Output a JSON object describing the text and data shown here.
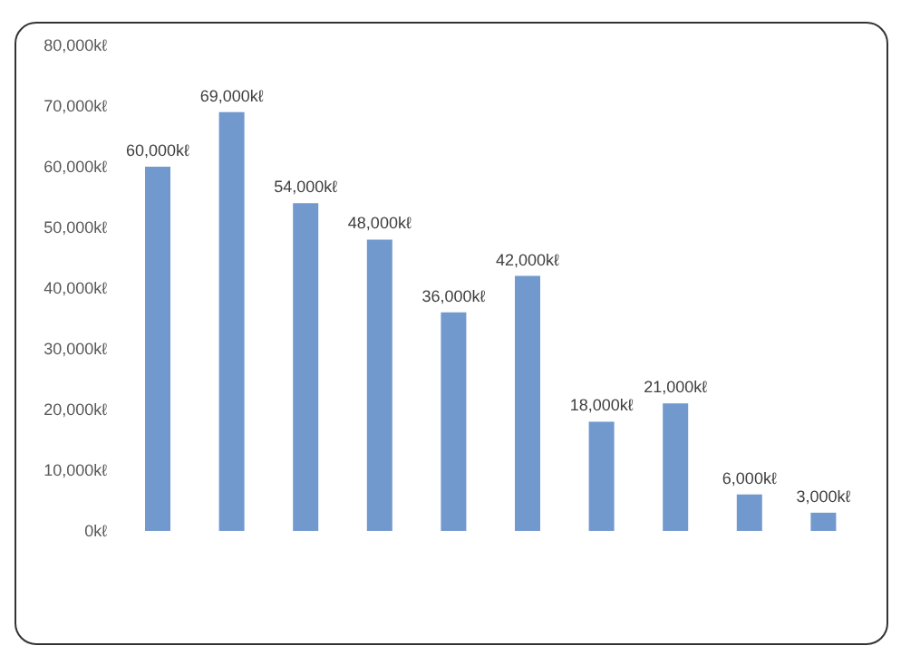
{
  "chart_data": {
    "type": "bar",
    "categories": [
      null,
      null,
      null,
      null,
      null,
      null,
      null,
      null,
      null,
      null
    ],
    "values": [
      60000,
      69000,
      54000,
      48000,
      36000,
      42000,
      18000,
      21000,
      6000,
      3000
    ],
    "value_labels": [
      "60,000kℓ",
      "69,000kℓ",
      "54,000kℓ",
      "48,000kℓ",
      "36,000kℓ",
      "42,000kℓ",
      "18,000kℓ",
      "21,000kℓ",
      "6,000kℓ",
      "3,000kℓ"
    ],
    "color": "#7199cd",
    "ylim": [
      0,
      80000
    ],
    "yticks": [
      {
        "value": 0,
        "label": "0kℓ"
      },
      {
        "value": 10000,
        "label": "10,000kℓ"
      },
      {
        "value": 20000,
        "label": "20,000kℓ"
      },
      {
        "value": 30000,
        "label": "30,000kℓ"
      },
      {
        "value": 40000,
        "label": "40,000kℓ"
      },
      {
        "value": 50000,
        "label": "50,000kℓ"
      },
      {
        "value": 60000,
        "label": "60,000kℓ"
      },
      {
        "value": 70000,
        "label": "70,000kℓ"
      },
      {
        "value": 80000,
        "label": "80,000kℓ"
      }
    ],
    "grid": false,
    "legend": false
  }
}
